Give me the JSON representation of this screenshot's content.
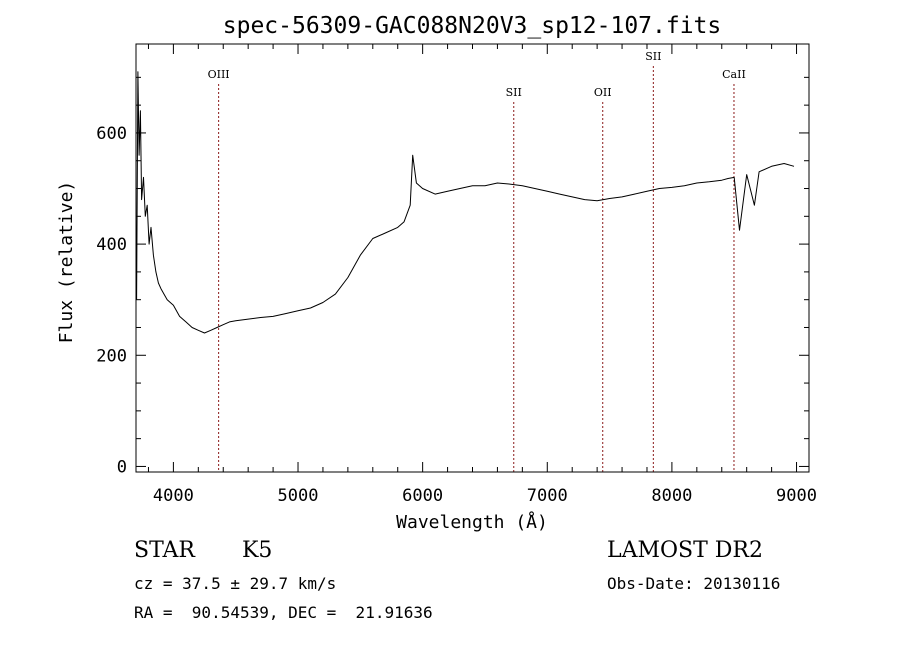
{
  "chart_data": {
    "type": "line",
    "title": "spec-56309-GAC088N20V3_sp12-107.fits",
    "xlabel": "Wavelength (Å)",
    "ylabel": "Flux (relative)",
    "xlim": [
      3700,
      9100
    ],
    "ylim": [
      -10,
      760
    ],
    "x_ticks": [
      4000,
      5000,
      6000,
      7000,
      8000,
      9000
    ],
    "y_ticks": [
      0,
      200,
      400,
      600
    ],
    "grid": false,
    "line_color": "#000000",
    "marker_color": "#8b1a1a",
    "spectral_lines": [
      {
        "label": "OIII",
        "wavelength": 4363
      },
      {
        "label": "SII",
        "wavelength": 6731
      },
      {
        "label": "OII",
        "wavelength": 7445
      },
      {
        "label": "SII",
        "wavelength": 7851
      },
      {
        "label": "CaII",
        "wavelength": 8498
      }
    ],
    "series": [
      {
        "x": [
          3705,
          3715,
          3725,
          3735,
          3745,
          3760,
          3775,
          3790,
          3805,
          3820,
          3840,
          3860,
          3880,
          3900,
          3925,
          3950,
          3975,
          4000,
          4050,
          4100,
          4150,
          4200,
          4250,
          4300,
          4350,
          4400,
          4450,
          4500,
          4600,
          4700,
          4800,
          4900,
          5000,
          5100,
          5200,
          5300,
          5400,
          5500,
          5600,
          5700,
          5800,
          5850,
          5900,
          5920,
          5950,
          6000,
          6100,
          6200,
          6300,
          6400,
          6500,
          6600,
          6700,
          6800,
          6900,
          7000,
          7100,
          7200,
          7300,
          7400,
          7500,
          7600,
          7700,
          7800,
          7900,
          8000,
          8100,
          8200,
          8300,
          8400,
          8450,
          8500,
          8542,
          8600,
          8662,
          8700,
          8800,
          8900,
          8980
        ],
        "y": [
          300,
          710,
          560,
          640,
          480,
          520,
          450,
          470,
          400,
          430,
          380,
          350,
          330,
          320,
          310,
          300,
          295,
          290,
          270,
          260,
          250,
          245,
          240,
          245,
          250,
          255,
          260,
          262,
          265,
          268,
          270,
          275,
          280,
          285,
          295,
          310,
          340,
          380,
          410,
          420,
          430,
          440,
          470,
          560,
          510,
          500,
          490,
          495,
          500,
          505,
          505,
          510,
          508,
          505,
          500,
          495,
          490,
          485,
          480,
          478,
          482,
          485,
          490,
          495,
          500,
          502,
          505,
          510,
          512,
          515,
          518,
          520,
          425,
          525,
          470,
          530,
          540,
          545,
          540
        ]
      }
    ]
  },
  "info": {
    "object_class": "STAR",
    "subclass": "K5",
    "survey": "LAMOST DR2",
    "cz_line": "cz = 37.5 ± 29.7 km/s",
    "obs_date": "Obs-Date: 20130116",
    "coords": "RA =  90.54539, DEC =  21.91636"
  }
}
